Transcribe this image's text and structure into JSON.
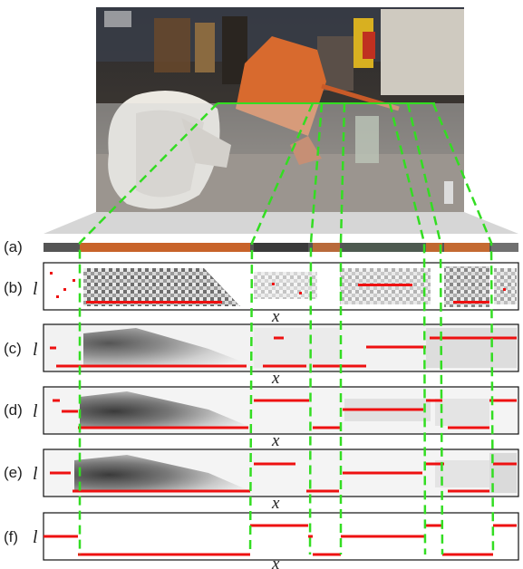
{
  "figure": {
    "panels": [
      {
        "label": "(a)",
        "axis_l": "",
        "axis_x": ""
      },
      {
        "label": "(b)",
        "axis_l": "l",
        "axis_x": "x"
      },
      {
        "label": "(c)",
        "axis_l": "l",
        "axis_x": "x"
      },
      {
        "label": "(d)",
        "axis_l": "l",
        "axis_x": "x"
      },
      {
        "label": "(e)",
        "axis_l": "l",
        "axis_x": "x"
      },
      {
        "label": "(f)",
        "axis_l": "l",
        "axis_x": "x"
      }
    ],
    "colors": {
      "guide": "#33dd22",
      "label_line": "#ee1111",
      "photo_strip": "#c8632a"
    }
  }
}
